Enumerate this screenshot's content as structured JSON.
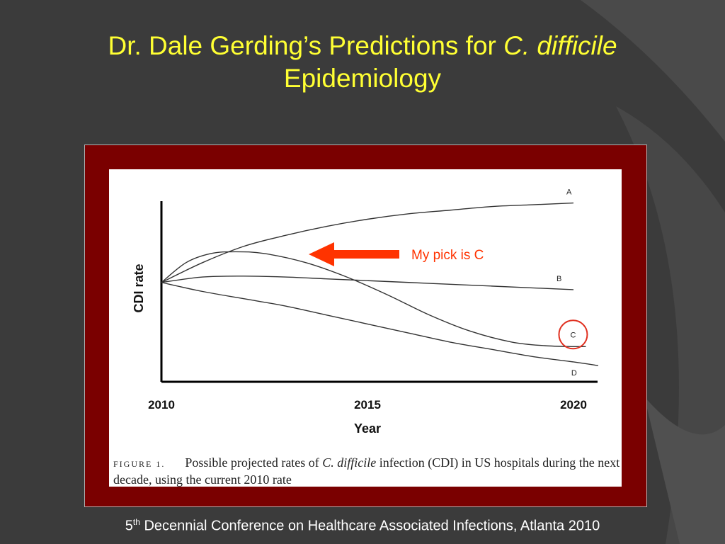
{
  "slide": {
    "title_line1_plain": "Dr. Dale Gerding’s Predictions for ",
    "title_line1_italic": "C. difficile",
    "title_line2": "Epidemiology",
    "annotation": "My pick is C",
    "footer_number": "5",
    "footer_sup": "th",
    "footer_text": " Decennial Conference on Healthcare Associated Infections, Atlanta 2010",
    "colors": {
      "background": "#3b3b3b",
      "title": "#ffff33",
      "frame": "#7a0000",
      "arrow": "#ff3300",
      "circle": "#e03020"
    }
  },
  "figure": {
    "caption_label": "FIGURE 1.",
    "caption_part1": "Possible projected rates of ",
    "caption_italic": "C. difficile",
    "caption_part2": " infection (CDI) in US hospitals during the next decade, using the current 2010 rate"
  },
  "chart_data": {
    "type": "line",
    "xlabel": "Year",
    "ylabel": "CDI rate",
    "x_ticks": [
      2010,
      2015,
      2020
    ],
    "xlim": [
      2010,
      2020.6
    ],
    "ylim": [
      0,
      1
    ],
    "series": [
      {
        "name": "A",
        "x": [
          2010,
          2011,
          2012,
          2013,
          2014,
          2015,
          2016,
          2017,
          2018,
          2019,
          2020
        ],
        "y": [
          0.55,
          0.66,
          0.75,
          0.81,
          0.86,
          0.9,
          0.93,
          0.95,
          0.97,
          0.98,
          0.99
        ]
      },
      {
        "name": "B",
        "x": [
          2010,
          2011,
          2012,
          2013,
          2014,
          2015,
          2016,
          2017,
          2018,
          2019,
          2020
        ],
        "y": [
          0.55,
          0.58,
          0.585,
          0.58,
          0.57,
          0.56,
          0.55,
          0.54,
          0.53,
          0.52,
          0.51
        ]
      },
      {
        "name": "C",
        "x": [
          2010,
          2010.6,
          2011.2,
          2011.8,
          2012.5,
          2013.5,
          2014.5,
          2015.5,
          2016.5,
          2017.5,
          2018.5,
          2019.3,
          2020,
          2020.3
        ],
        "y": [
          0.55,
          0.66,
          0.71,
          0.72,
          0.71,
          0.66,
          0.58,
          0.48,
          0.37,
          0.28,
          0.22,
          0.2,
          0.195,
          0.195
        ]
      },
      {
        "name": "D",
        "x": [
          2010,
          2011,
          2012,
          2013,
          2014,
          2015,
          2016,
          2017,
          2018,
          2019,
          2020,
          2020.6
        ],
        "y": [
          0.55,
          0.5,
          0.46,
          0.42,
          0.37,
          0.32,
          0.27,
          0.22,
          0.18,
          0.14,
          0.11,
          0.09
        ]
      }
    ],
    "highlight_series": "C"
  }
}
